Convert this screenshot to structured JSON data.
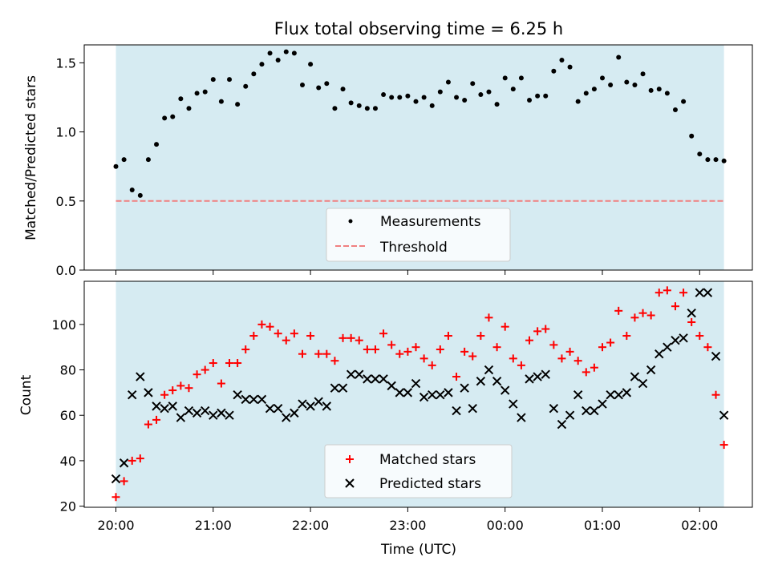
{
  "chart_data": [
    {
      "type": "scatter",
      "title": "Flux total observing time = 6.25 h",
      "ylabel": "Matched/Predicted stars",
      "ylim": [
        0.0,
        1.63
      ],
      "yticks": [
        "0.0",
        "0.5",
        "1.0",
        "1.5"
      ],
      "ytick_values": [
        0.0,
        0.5,
        1.0,
        1.5
      ],
      "shaded_span_hours": [
        0,
        6.25
      ],
      "shade_color": "#add8e6",
      "legend_position": "lower-center",
      "series": [
        {
          "name": "Measurements",
          "marker": "dot",
          "color": "#000000",
          "values": [
            0.75,
            0.8,
            0.58,
            0.54,
            0.8,
            0.91,
            1.1,
            1.11,
            1.24,
            1.17,
            1.28,
            1.29,
            1.38,
            1.22,
            1.38,
            1.2,
            1.33,
            1.42,
            1.49,
            1.57,
            1.52,
            1.58,
            1.57,
            1.34,
            1.49,
            1.32,
            1.35,
            1.17,
            1.31,
            1.21,
            1.19,
            1.17,
            1.17,
            1.27,
            1.25,
            1.25,
            1.26,
            1.22,
            1.25,
            1.19,
            1.29,
            1.36,
            1.25,
            1.23,
            1.35,
            1.27,
            1.29,
            1.2,
            1.39,
            1.31,
            1.39,
            1.23,
            1.26,
            1.26,
            1.44,
            1.52,
            1.47,
            1.22,
            1.28,
            1.31,
            1.39,
            1.34,
            1.54,
            1.36,
            1.34,
            1.42,
            1.3,
            1.31,
            1.28,
            1.16,
            1.22,
            0.97,
            0.84,
            0.8,
            0.8,
            0.79
          ]
        },
        {
          "name": "Threshold",
          "marker": "dashed-line",
          "color": "#f08080",
          "value": 0.5
        }
      ]
    },
    {
      "type": "scatter",
      "xlabel": "Time (UTC)",
      "ylabel": "Count",
      "ylim": [
        19.5,
        119
      ],
      "yticks": [
        "20",
        "40",
        "60",
        "80",
        "100"
      ],
      "ytick_values": [
        20,
        40,
        60,
        80,
        100
      ],
      "xticks": [
        "20:00",
        "21:00",
        "22:00",
        "23:00",
        "00:00",
        "01:00",
        "02:00"
      ],
      "xtick_hours": [
        0,
        1,
        2,
        3,
        4,
        5,
        6
      ],
      "shaded_span_hours": [
        0,
        6.25
      ],
      "shade_color": "#add8e6",
      "legend_position": "lower-center",
      "series": [
        {
          "name": "Matched stars",
          "marker": "plus",
          "color": "#ff0000",
          "values": [
            24,
            31,
            40,
            41,
            56,
            58,
            69,
            71,
            73,
            72,
            78,
            80,
            83,
            74,
            83,
            83,
            89,
            95,
            100,
            99,
            96,
            93,
            96,
            87,
            95,
            87,
            87,
            84,
            94,
            94,
            93,
            89,
            89,
            96,
            91,
            87,
            88,
            90,
            85,
            82,
            89,
            95,
            77,
            88,
            86,
            95,
            103,
            90,
            99,
            85,
            82,
            93,
            97,
            98,
            91,
            85,
            88,
            84,
            79,
            81,
            90,
            92,
            106,
            95,
            103,
            105,
            104,
            114,
            115,
            108,
            114,
            101,
            95,
            90,
            69,
            47
          ]
        },
        {
          "name": "Predicted stars",
          "marker": "x",
          "color": "#000000",
          "values": [
            32,
            39,
            69,
            77,
            70,
            64,
            63,
            64,
            59,
            62,
            61,
            62,
            60,
            61,
            60,
            69,
            67,
            67,
            67,
            63,
            63,
            59,
            61,
            65,
            64,
            66,
            64,
            72,
            72,
            78,
            78,
            76,
            76,
            76,
            73,
            70,
            70,
            74,
            68,
            69,
            69,
            70,
            62,
            72,
            63,
            75,
            80,
            75,
            71,
            65,
            59,
            76,
            77,
            78,
            63,
            56,
            60,
            69,
            62,
            62,
            65,
            69,
            69,
            70,
            77,
            74,
            80,
            87,
            90,
            93,
            94,
            105,
            114,
            114,
            86,
            60
          ]
        }
      ]
    }
  ]
}
